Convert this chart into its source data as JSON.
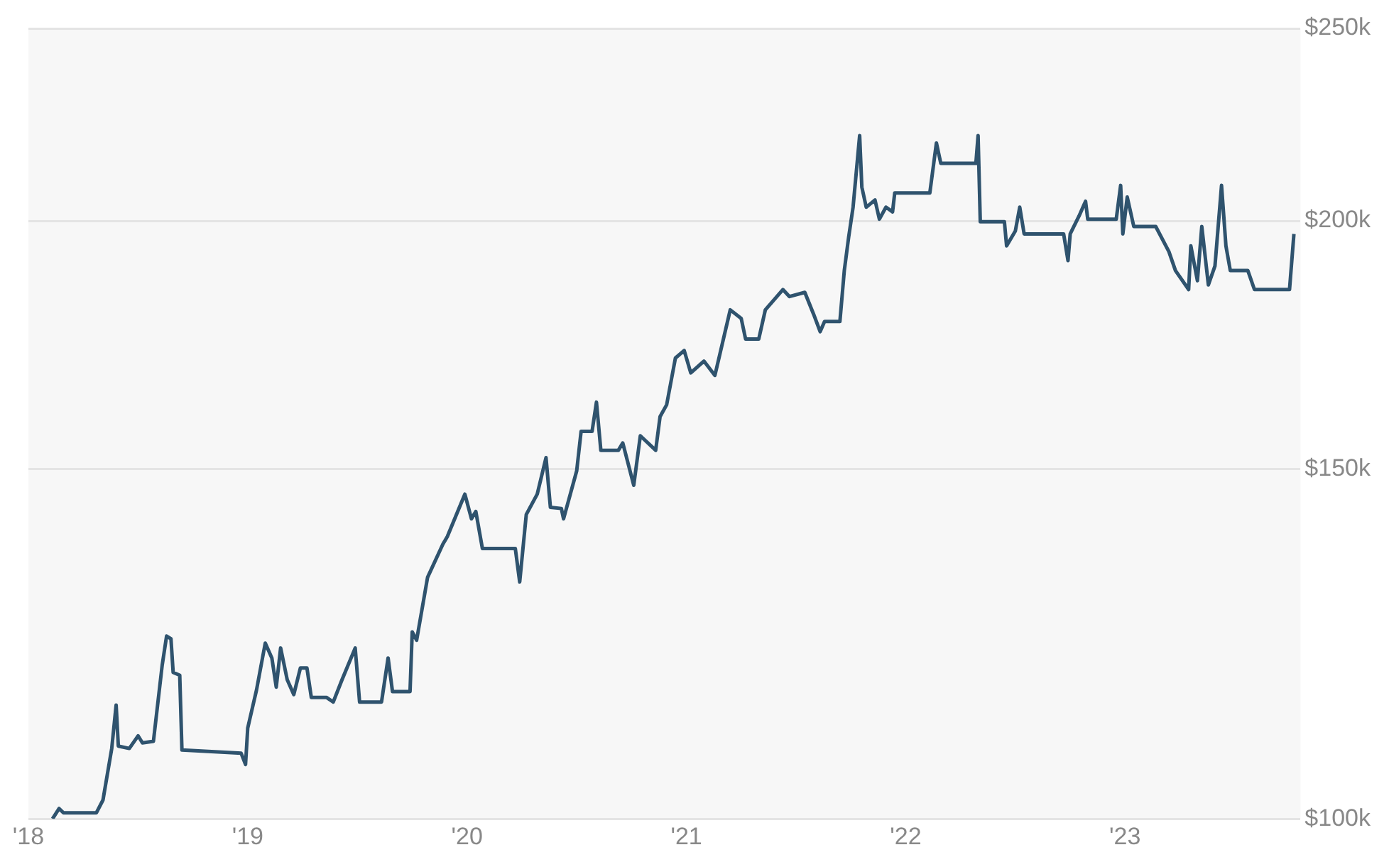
{
  "chart_data": {
    "type": "line",
    "log": "y",
    "grid": "y",
    "marker": "none",
    "color": "#2f536e",
    "xlim": [
      2018,
      2023.8
    ],
    "xticks": [
      {
        "value": 2018,
        "label": "'18"
      },
      {
        "value": 2019,
        "label": "'19"
      },
      {
        "value": 2020,
        "label": "'20"
      },
      {
        "value": 2021,
        "label": "'21"
      },
      {
        "value": 2022,
        "label": "'22"
      },
      {
        "value": 2023,
        "label": "'23"
      }
    ],
    "ylim": [
      100000,
      250000
    ],
    "yticks": [
      {
        "value": 100000,
        "label": "$100k"
      },
      {
        "value": 150000,
        "label": "$150k"
      },
      {
        "value": 200000,
        "label": "$200k"
      },
      {
        "value": 250000,
        "label": "$250k"
      }
    ],
    "x": [
      2018.11,
      2018.14,
      2018.16,
      2018.31,
      2018.34,
      2018.38,
      2018.4,
      2018.41,
      2018.46,
      2018.5,
      2018.52,
      2018.57,
      2018.61,
      2018.63,
      2018.65,
      2018.66,
      2018.69,
      2018.7,
      2018.97,
      2018.99,
      2019.0,
      2019.04,
      2019.08,
      2019.11,
      2019.13,
      2019.15,
      2019.18,
      2019.21,
      2019.24,
      2019.27,
      2019.29,
      2019.36,
      2019.39,
      2019.43,
      2019.49,
      2019.51,
      2019.61,
      2019.64,
      2019.66,
      2019.74,
      2019.75,
      2019.77,
      2019.82,
      2019.89,
      2019.91,
      2019.99,
      2020.02,
      2020.04,
      2020.07,
      2020.22,
      2020.24,
      2020.27,
      2020.32,
      2020.36,
      2020.38,
      2020.43,
      2020.44,
      2020.5,
      2020.52,
      2020.57,
      2020.59,
      2020.61,
      2020.69,
      2020.71,
      2020.76,
      2020.79,
      2020.86,
      2020.88,
      2020.91,
      2020.95,
      2020.99,
      2021.02,
      2021.08,
      2021.13,
      2021.2,
      2021.25,
      2021.27,
      2021.33,
      2021.36,
      2021.44,
      2021.47,
      2021.54,
      2021.58,
      2021.61,
      2021.63,
      2021.7,
      2021.72,
      2021.74,
      2021.76,
      2021.79,
      2021.8,
      2021.82,
      2021.86,
      2021.88,
      2021.91,
      2021.94,
      2021.95,
      2022.11,
      2022.14,
      2022.16,
      2022.32,
      2022.33,
      2022.34,
      2022.45,
      2022.46,
      2022.5,
      2022.52,
      2022.54,
      2022.72,
      2022.74,
      2022.75,
      2022.79,
      2022.82,
      2022.83,
      2022.96,
      2022.98,
      2022.99,
      2023.01,
      2023.04,
      2023.14,
      2023.2,
      2023.23,
      2023.29,
      2023.3,
      2023.33,
      2023.35,
      2023.38,
      2023.41,
      2023.44,
      2023.46,
      2023.48,
      2023.56,
      2023.59,
      2023.75,
      2023.77
    ],
    "values": [
      100000,
      101200,
      100700,
      100700,
      102200,
      108500,
      114100,
      108800,
      108500,
      110100,
      109200,
      109400,
      119500,
      123600,
      123200,
      118500,
      118100,
      108300,
      107900,
      106500,
      111100,
      116100,
      122600,
      120500,
      116500,
      121900,
      117500,
      115500,
      119100,
      119100,
      115100,
      115100,
      114500,
      117500,
      121900,
      114500,
      114500,
      120500,
      115900,
      115900,
      124200,
      123000,
      132300,
      137500,
      138700,
      145700,
      141600,
      142800,
      136800,
      136800,
      131600,
      142300,
      145700,
      152000,
      143500,
      143300,
      141600,
      149700,
      156700,
      156700,
      162100,
      153300,
      153300,
      154600,
      147200,
      155900,
      153300,
      159400,
      161600,
      170600,
      172100,
      167700,
      170000,
      167200,
      180400,
      178600,
      174400,
      174400,
      180400,
      184700,
      183200,
      184100,
      179500,
      175900,
      178000,
      178000,
      188800,
      196300,
      203200,
      220800,
      208000,
      203200,
      204900,
      200400,
      203200,
      202100,
      206600,
      206600,
      218900,
      213800,
      213800,
      220800,
      199800,
      199800,
      194300,
      197700,
      203200,
      197000,
      197000,
      191000,
      197000,
      201100,
      204600,
      200400,
      200400,
      208400,
      197000,
      205600,
      198700,
      198700,
      193000,
      188800,
      184700,
      194300,
      186600,
      198700,
      185700,
      189800,
      208400,
      194300,
      188800,
      188800,
      184700,
      184700,
      197000
    ]
  }
}
